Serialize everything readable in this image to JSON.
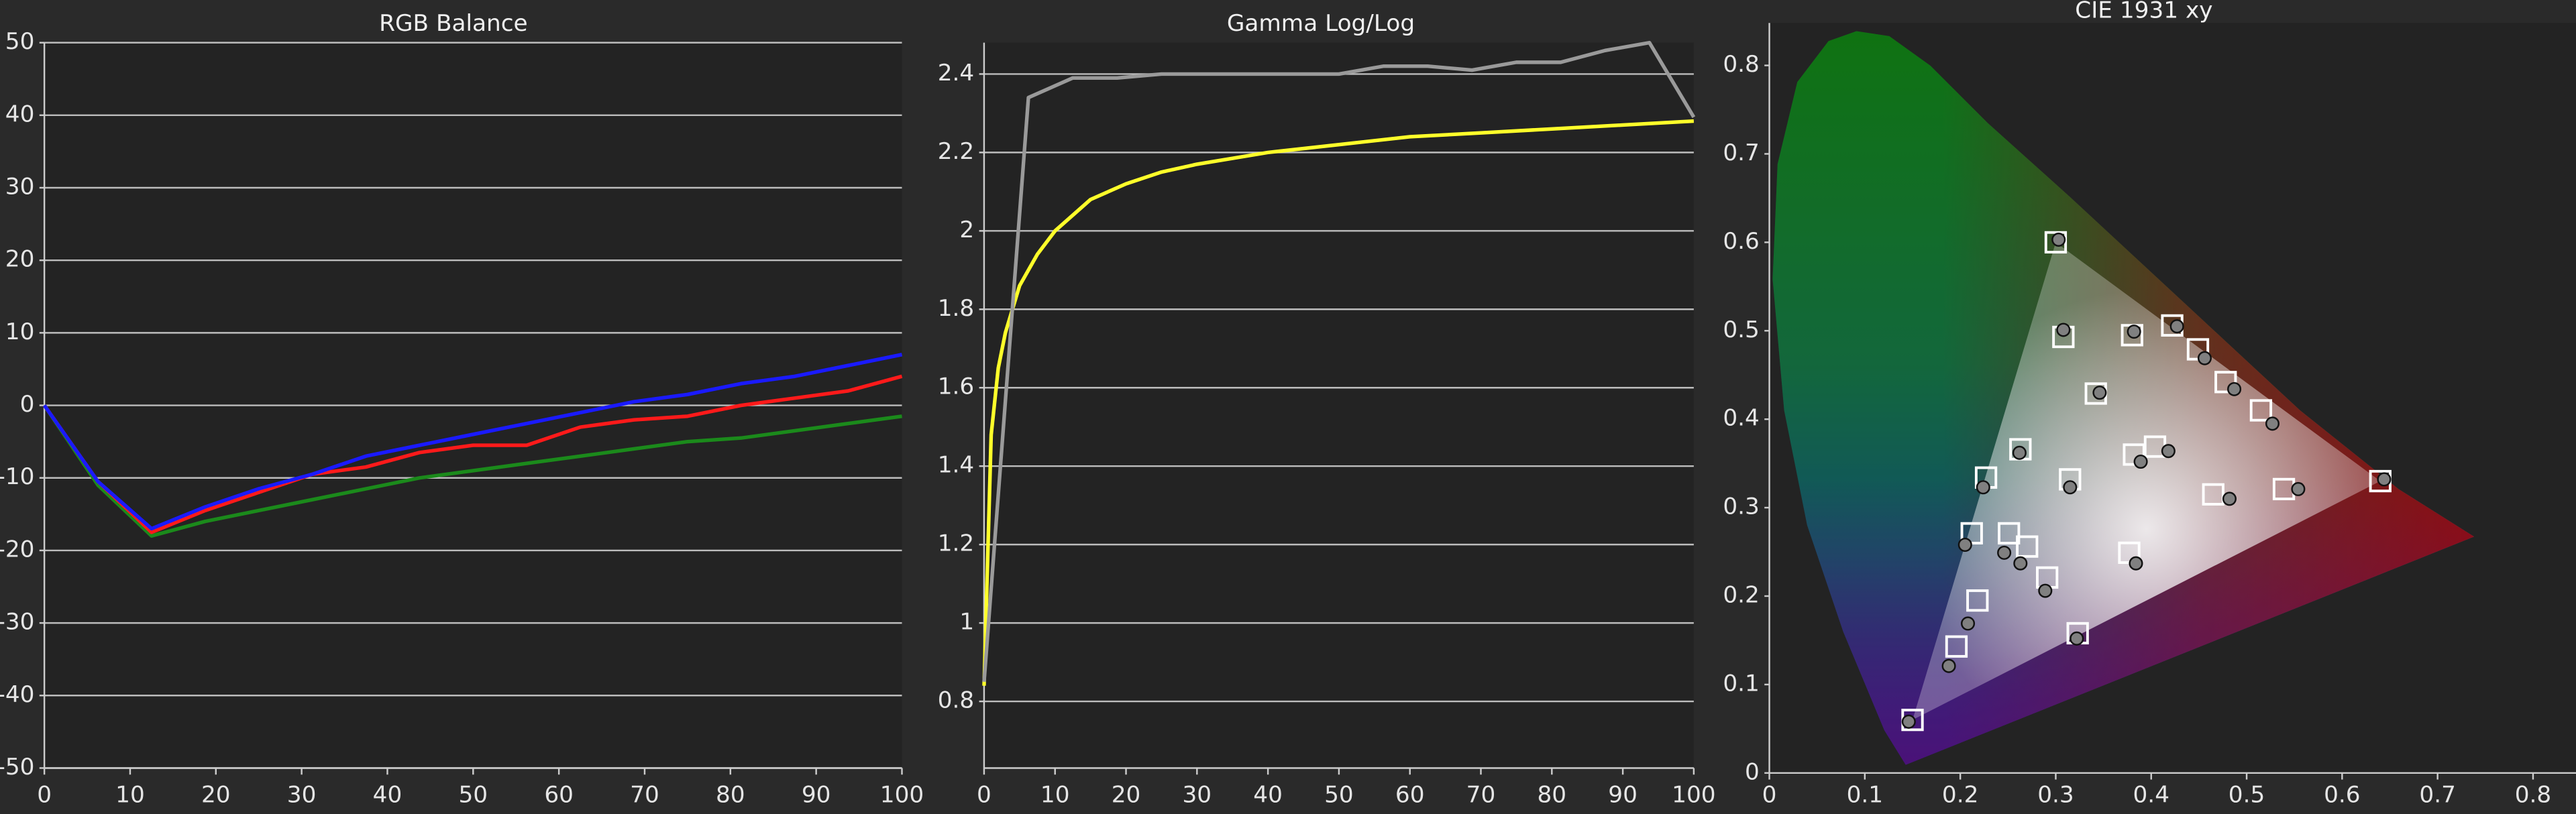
{
  "chart_data": [
    {
      "type": "line",
      "title": "RGB Balance",
      "x": [
        0,
        6.25,
        12.5,
        18.75,
        25,
        31.25,
        37.5,
        43.75,
        50,
        56.25,
        62.5,
        68.75,
        75,
        81.25,
        87.5,
        93.75,
        100
      ],
      "xlim": [
        0,
        100
      ],
      "xticks": [
        0,
        10,
        20,
        30,
        40,
        50,
        60,
        70,
        80,
        90,
        100
      ],
      "ylim": [
        -50,
        50
      ],
      "yticks": [
        -50,
        -40,
        -30,
        -20,
        -10,
        0,
        10,
        20,
        30,
        40,
        50
      ],
      "grid": true,
      "series": [
        {
          "color": "#1b8a1b",
          "values": [
            0,
            -11,
            -18,
            -16,
            -14.5,
            -13,
            -11.5,
            -10,
            -9,
            -8,
            -7,
            -6,
            -5,
            -4.5,
            -3.5,
            -2.5,
            -1.5
          ]
        },
        {
          "color": "#ff1a1a",
          "values": [
            0,
            -10.5,
            -17.5,
            -14.5,
            -12,
            -9.5,
            -8.5,
            -6.5,
            -5.5,
            -5.5,
            -3,
            -2,
            -1.5,
            0,
            1,
            2,
            4
          ]
        },
        {
          "color": "#1a1aff",
          "values": [
            0,
            -10.5,
            -17,
            -14,
            -11.5,
            -9.5,
            -7,
            -5.5,
            -4,
            -2.5,
            -1,
            0.5,
            1.5,
            3,
            4,
            5.5,
            7
          ]
        }
      ]
    },
    {
      "type": "line",
      "title": "Gamma Log/Log",
      "xlim": [
        0,
        100
      ],
      "xticks": [
        0,
        10,
        20,
        30,
        40,
        50,
        60,
        70,
        80,
        90,
        100
      ],
      "ylim": [
        0.63,
        2.48
      ],
      "yticks": [
        0.8,
        1,
        1.2,
        1.4,
        1.6,
        1.8,
        2,
        2.2,
        2.4
      ],
      "grid": true,
      "series": [
        {
          "color": "#ffff2a",
          "x": [
            0,
            1,
            2,
            3,
            4,
            5,
            7.5,
            10,
            12.5,
            15,
            20,
            25,
            30,
            40,
            50,
            60,
            70,
            80,
            90,
            100
          ],
          "values": [
            0.84,
            1.48,
            1.65,
            1.74,
            1.8,
            1.86,
            1.94,
            2.0,
            2.04,
            2.08,
            2.12,
            2.15,
            2.17,
            2.2,
            2.22,
            2.24,
            2.25,
            2.26,
            2.27,
            2.28
          ]
        },
        {
          "color": "#9a9a9a",
          "x": [
            0,
            6.25,
            12.5,
            18.75,
            25,
            31.25,
            37.5,
            43.75,
            50,
            56.25,
            62.5,
            68.75,
            75,
            81.25,
            87.5,
            93.75,
            100
          ],
          "values": [
            0.85,
            2.34,
            2.39,
            2.39,
            2.4,
            2.4,
            2.4,
            2.4,
            2.4,
            2.42,
            2.42,
            2.41,
            2.43,
            2.43,
            2.46,
            2.48,
            2.29
          ]
        }
      ]
    },
    {
      "type": "scatter",
      "title": "CIE 1931 xy",
      "xlim": [
        0,
        0.845
      ],
      "xticks": [
        0,
        0.1,
        0.2,
        0.3,
        0.4,
        0.5,
        0.6,
        0.7,
        0.8
      ],
      "ylim": [
        0,
        0.848
      ],
      "yticks": [
        0,
        0.1,
        0.2,
        0.3,
        0.4,
        0.5,
        0.6,
        0.7,
        0.8
      ],
      "series": [
        {
          "marker": "square",
          "color": "#ffffff",
          "x": [
            0.64,
            0.3,
            0.15,
            0.315,
            0.422,
            0.308,
            0.38,
            0.449,
            0.478,
            0.515,
            0.342,
            0.263,
            0.227,
            0.212,
            0.251,
            0.27,
            0.291,
            0.218,
            0.196,
            0.323,
            0.377,
            0.465,
            0.539,
            0.382,
            0.404
          ],
          "values": [
            0.33,
            0.6,
            0.06,
            0.332,
            0.506,
            0.493,
            0.495,
            0.479,
            0.442,
            0.41,
            0.429,
            0.366,
            0.334,
            0.271,
            0.271,
            0.256,
            0.221,
            0.195,
            0.143,
            0.158,
            0.249,
            0.315,
            0.321,
            0.36,
            0.369
          ]
        },
        {
          "marker": "circle",
          "color": "#808080",
          "x": [
            0.644,
            0.303,
            0.146,
            0.315,
            0.427,
            0.308,
            0.382,
            0.456,
            0.487,
            0.527,
            0.346,
            0.262,
            0.224,
            0.205,
            0.246,
            0.263,
            0.289,
            0.208,
            0.188,
            0.322,
            0.384,
            0.482,
            0.554,
            0.389,
            0.418
          ],
          "values": [
            0.332,
            0.603,
            0.058,
            0.323,
            0.505,
            0.501,
            0.499,
            0.469,
            0.434,
            0.395,
            0.43,
            0.362,
            0.323,
            0.258,
            0.249,
            0.237,
            0.206,
            0.169,
            0.121,
            0.152,
            0.237,
            0.31,
            0.321,
            0.352,
            0.364
          ]
        }
      ]
    }
  ]
}
